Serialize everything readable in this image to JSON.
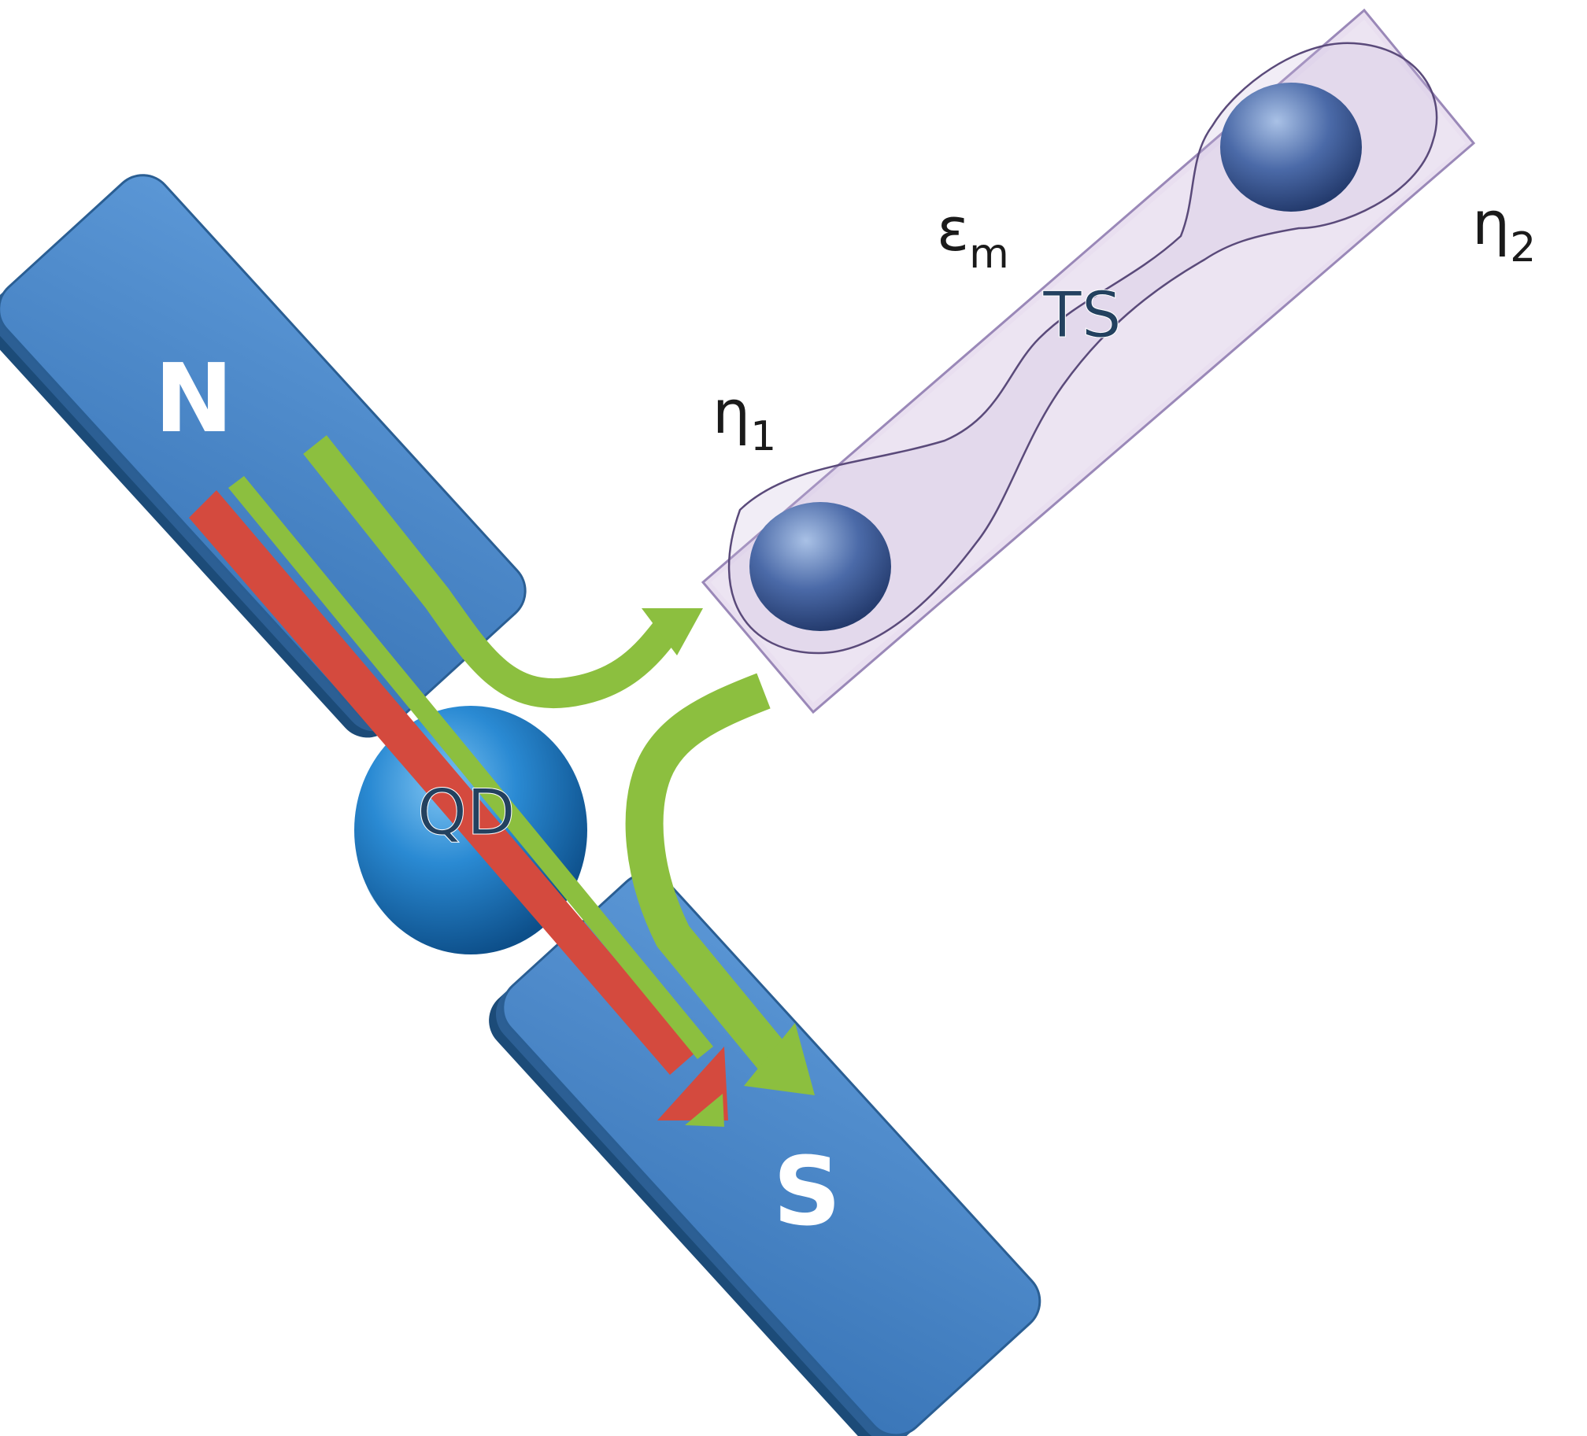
{
  "diagram": {
    "magnet_north_label": "N",
    "magnet_south_label": "S",
    "quantum_dot_label": "QD",
    "topological_wire_label": "TS",
    "majorana_1_label": "η",
    "majorana_1_subscript": "1",
    "majorana_2_label": "η",
    "majorana_2_subscript": "2",
    "coupling_label": "ε",
    "coupling_subscript": "m"
  },
  "colors": {
    "magnet_fill": "#4a86c8",
    "magnet_edge": "#2c5f94",
    "magnet_side": "#1f4f7f",
    "quantum_dot": "#1e7ec8",
    "wire_fill": "#e9dff0",
    "wire_edge": "#9a88b8",
    "majorana_sphere": "#3e5f9a",
    "red_arrow": "#d44a3e",
    "green_arrow": "#8cbf3f",
    "text_dark": "#1a1a1a",
    "text_light": "#ffffff",
    "text_navy": "#23415f"
  }
}
